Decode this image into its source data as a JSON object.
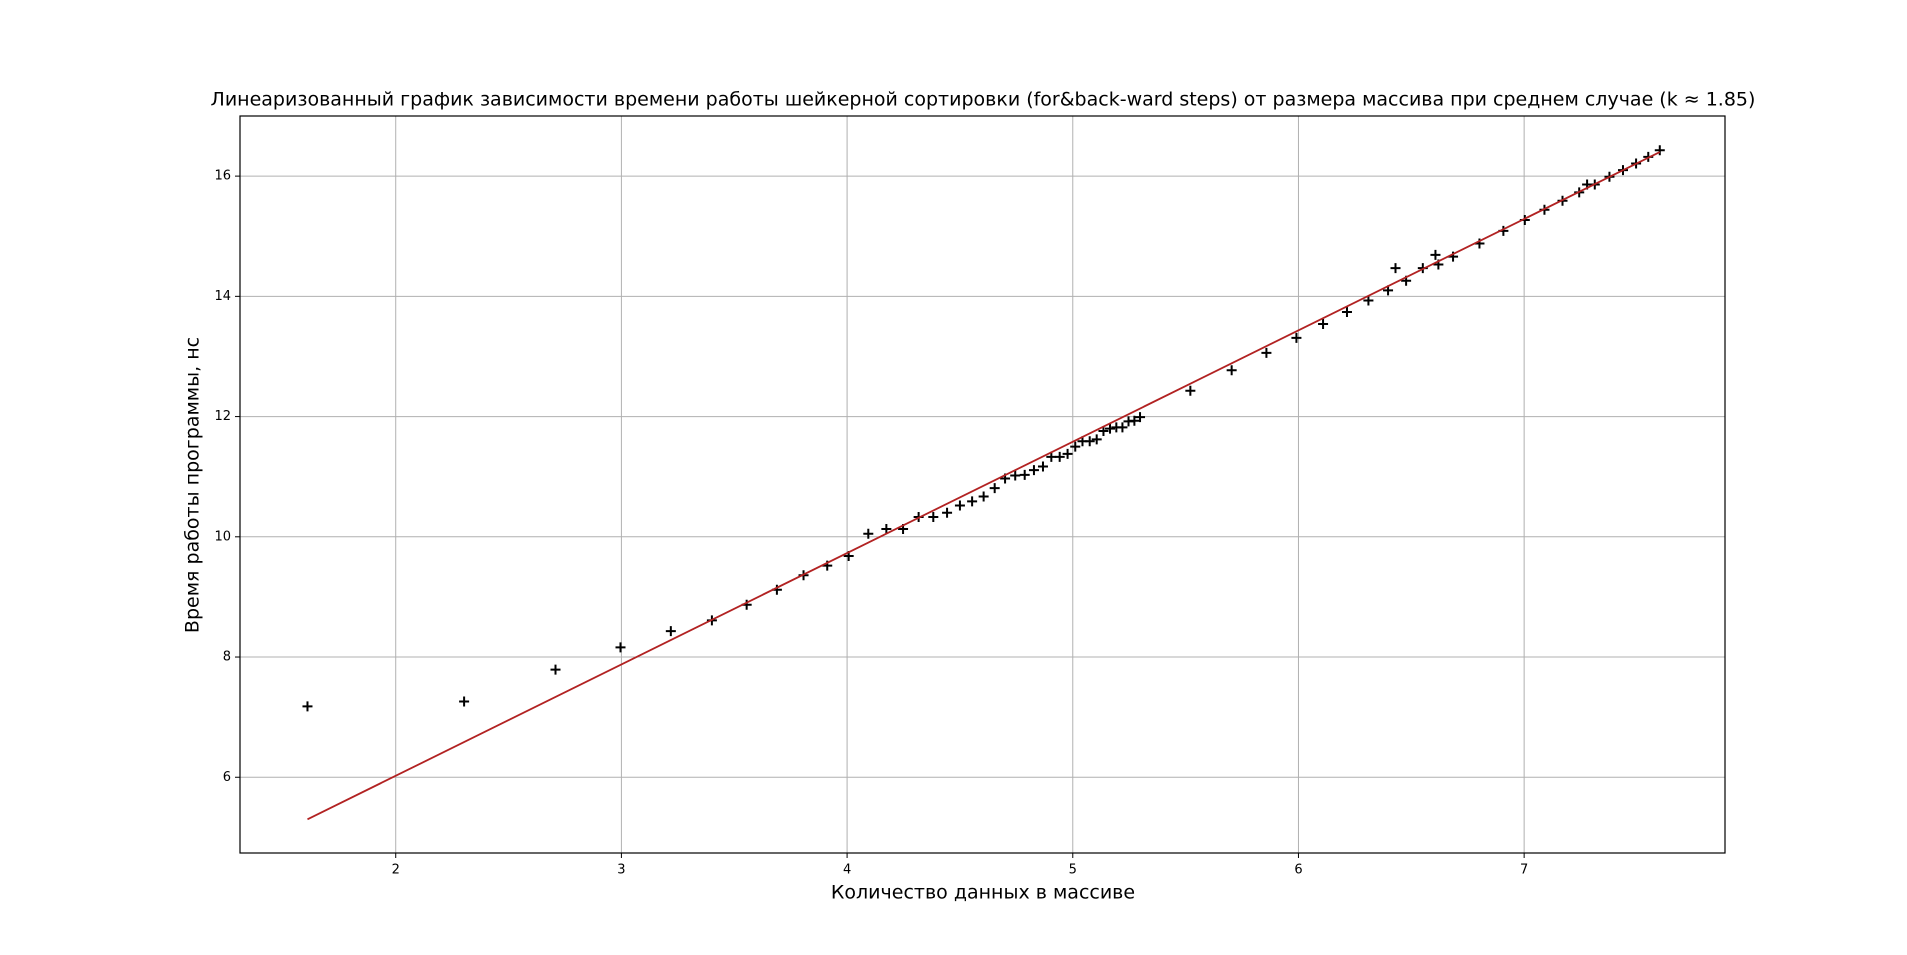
{
  "chart_data": {
    "type": "scatter",
    "title": "Линеаризованный график зависимости времени работы шейкерной сортировки (for&back-ward steps) от размера массива при среднем случае (k ≈ 1.85)",
    "x_label": "Количество данных в массиве",
    "y_label": "Время работы программы, нс",
    "xlim": [
      1.31,
      7.89
    ],
    "ylim": [
      4.74,
      17.0
    ],
    "xticks": [
      2,
      3,
      4,
      5,
      6,
      7
    ],
    "yticks": [
      6,
      8,
      10,
      12,
      14,
      16
    ],
    "grid": true,
    "series": [
      {
        "type": "scatter",
        "marker": "+",
        "color": "#000000",
        "x": [
          1.609,
          2.303,
          2.708,
          2.996,
          3.219,
          3.401,
          3.555,
          3.689,
          3.807,
          3.912,
          4.007,
          4.094,
          4.174,
          4.248,
          4.317,
          4.382,
          4.443,
          4.5,
          4.554,
          4.605,
          4.654,
          4.7,
          4.745,
          4.787,
          4.828,
          4.868,
          4.905,
          4.942,
          4.977,
          5.011,
          5.043,
          5.075,
          5.106,
          5.136,
          5.165,
          5.193,
          5.22,
          5.247,
          5.273,
          5.298,
          5.521,
          5.704,
          5.858,
          5.991,
          6.109,
          6.215,
          6.31,
          6.397,
          6.43,
          6.477,
          6.551,
          6.607,
          6.62,
          6.685,
          6.802,
          6.908,
          7.003,
          7.09,
          7.17,
          7.244,
          7.279,
          7.313,
          7.378,
          7.438,
          7.496,
          7.55,
          7.601
        ],
        "y": [
          7.18,
          7.26,
          7.79,
          8.16,
          8.43,
          8.61,
          8.87,
          9.12,
          9.36,
          9.52,
          9.68,
          10.05,
          10.13,
          10.13,
          10.33,
          10.33,
          10.4,
          10.52,
          10.59,
          10.67,
          10.81,
          10.97,
          11.02,
          11.03,
          11.11,
          11.17,
          11.33,
          11.33,
          11.38,
          11.5,
          11.59,
          11.59,
          11.62,
          11.76,
          11.8,
          11.82,
          11.82,
          11.92,
          11.93,
          11.99,
          12.43,
          12.77,
          13.06,
          13.31,
          13.54,
          13.74,
          13.93,
          14.1,
          14.47,
          14.26,
          14.47,
          14.69,
          14.53,
          14.66,
          14.88,
          15.09,
          15.27,
          15.44,
          15.59,
          15.73,
          15.86,
          15.86,
          15.99,
          16.1,
          16.21,
          16.32,
          16.43
        ]
      },
      {
        "type": "line",
        "color": "#b22222",
        "x": [
          1.609,
          7.601
        ],
        "y": [
          5.3,
          16.4
        ]
      }
    ]
  }
}
